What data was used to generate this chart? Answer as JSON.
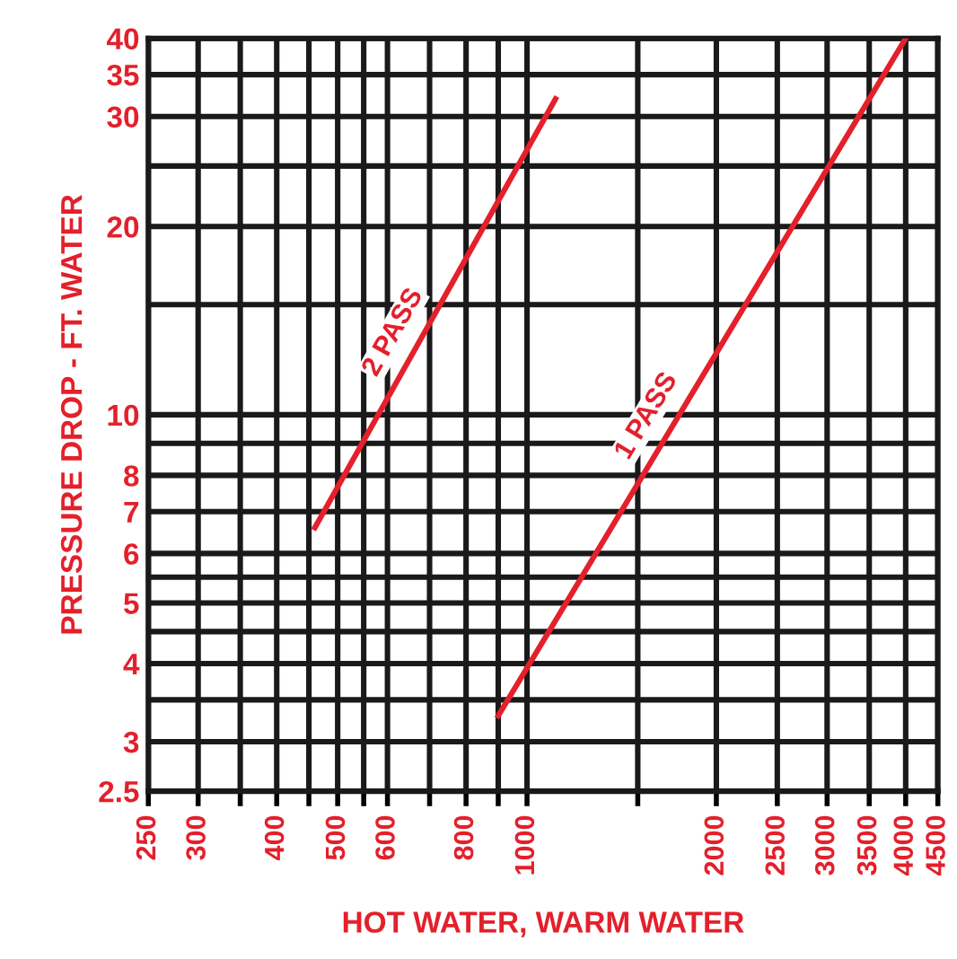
{
  "chart_data": {
    "type": "line",
    "xlabel": "HOT WATER, WARM WATER",
    "ylabel": "PRESSURE DROP - FT. WATER",
    "log": "xy",
    "grid": true,
    "legend": false,
    "marker": "none",
    "line_style": "solid",
    "xlim": [
      250,
      4500
    ],
    "ylim": [
      2.5,
      40
    ],
    "xticks": [
      250,
      300,
      {
        "value": 350,
        "label": null
      },
      400,
      {
        "value": 450,
        "label": null
      },
      500,
      {
        "value": 550,
        "label": null
      },
      600,
      {
        "value": 700,
        "label": null
      },
      800,
      {
        "value": 900,
        "label": null
      },
      1000,
      {
        "value": 1500,
        "label": null
      },
      2000,
      2500,
      3000,
      3500,
      4000,
      4500
    ],
    "yticks": [
      2.5,
      3,
      {
        "value": 3.5,
        "label": null
      },
      4,
      {
        "value": 4.5,
        "label": null
      },
      5,
      {
        "value": 5.5,
        "label": null
      },
      6,
      7,
      8,
      {
        "value": 9,
        "label": null
      },
      10,
      {
        "value": 15,
        "label": null
      },
      20,
      {
        "value": 25,
        "label": null
      },
      30,
      35,
      40
    ],
    "series": [
      {
        "name": "2 PASS",
        "color": "#e3202b",
        "x": [
          460,
          1110
        ],
        "values": [
          6.6,
          32
        ]
      },
      {
        "name": "1 PASS",
        "color": "#e3202b",
        "x": [
          900,
          4000
        ],
        "values": [
          3.3,
          40
        ]
      }
    ]
  }
}
